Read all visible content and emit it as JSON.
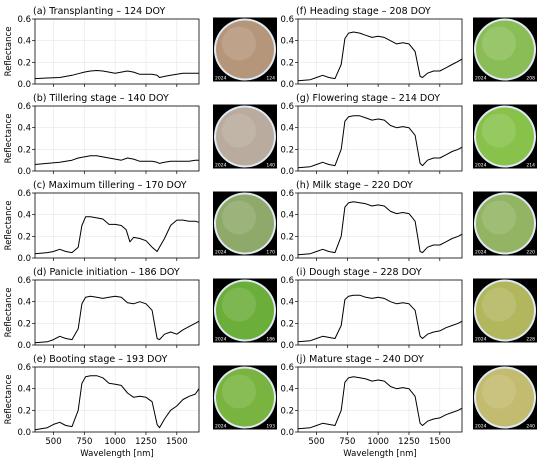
{
  "chart_data": {
    "type": "line",
    "xlabel": "Wavelength [nm]",
    "ylabel": "Reflectance",
    "xlim": [
      350,
      1680
    ],
    "ylim": [
      0,
      0.6
    ],
    "xticks": [
      "500",
      "750",
      "1000",
      "1250",
      "1500"
    ],
    "yticks": [
      "0.0",
      "0.2",
      "0.4",
      "0.6"
    ],
    "grid": true,
    "panels": [
      {
        "title": "(a) Transplanting – 124 DOY",
        "photo": {
          "year": "2024",
          "doy": "124",
          "color": "#b5967a"
        },
        "x": [
          350,
          450,
          550,
          650,
          700,
          750,
          800,
          850,
          900,
          950,
          1000,
          1050,
          1100,
          1150,
          1200,
          1250,
          1300,
          1340,
          1360,
          1400,
          1450,
          1500,
          1550,
          1600,
          1650,
          1680
        ],
        "y": [
          0.05,
          0.055,
          0.06,
          0.08,
          0.095,
          0.11,
          0.12,
          0.125,
          0.12,
          0.11,
          0.1,
          0.11,
          0.12,
          0.11,
          0.09,
          0.09,
          0.09,
          0.08,
          0.06,
          0.07,
          0.08,
          0.09,
          0.1,
          0.1,
          0.1,
          0.1
        ]
      },
      {
        "title": "(b) Tillering stage – 140 DOY",
        "photo": {
          "year": "2024",
          "doy": "140",
          "color": "#b9ab9d"
        },
        "x": [
          350,
          450,
          550,
          650,
          700,
          750,
          800,
          850,
          900,
          950,
          1000,
          1050,
          1100,
          1150,
          1200,
          1250,
          1300,
          1340,
          1360,
          1400,
          1450,
          1500,
          1550,
          1600,
          1650,
          1680
        ],
        "y": [
          0.06,
          0.07,
          0.08,
          0.1,
          0.12,
          0.13,
          0.14,
          0.14,
          0.13,
          0.12,
          0.11,
          0.1,
          0.12,
          0.11,
          0.09,
          0.09,
          0.09,
          0.08,
          0.07,
          0.08,
          0.09,
          0.09,
          0.09,
          0.09,
          0.1,
          0.1
        ]
      },
      {
        "title": "(c) Maximum tillering – 170 DOY",
        "photo": {
          "year": "2024",
          "doy": "170",
          "color": "#8fa96a"
        },
        "x": [
          350,
          450,
          500,
          550,
          600,
          650,
          700,
          730,
          760,
          800,
          850,
          900,
          950,
          1000,
          1050,
          1090,
          1120,
          1150,
          1200,
          1250,
          1300,
          1340,
          1360,
          1400,
          1450,
          1500,
          1550,
          1600,
          1650,
          1680
        ],
        "y": [
          0.04,
          0.05,
          0.06,
          0.08,
          0.06,
          0.05,
          0.1,
          0.3,
          0.38,
          0.38,
          0.37,
          0.36,
          0.31,
          0.31,
          0.3,
          0.26,
          0.15,
          0.19,
          0.18,
          0.16,
          0.1,
          0.06,
          0.1,
          0.18,
          0.3,
          0.35,
          0.35,
          0.34,
          0.34,
          0.33
        ]
      },
      {
        "title": "(d) Panicle initiation – 186 DOY",
        "photo": {
          "year": "2024",
          "doy": "186",
          "color": "#6cae3a"
        },
        "x": [
          350,
          450,
          500,
          550,
          600,
          650,
          700,
          730,
          760,
          800,
          850,
          900,
          950,
          1000,
          1050,
          1100,
          1150,
          1200,
          1250,
          1300,
          1340,
          1360,
          1400,
          1450,
          1500,
          1550,
          1600,
          1650,
          1680
        ],
        "y": [
          0.02,
          0.03,
          0.05,
          0.08,
          0.06,
          0.05,
          0.15,
          0.38,
          0.44,
          0.45,
          0.44,
          0.43,
          0.44,
          0.45,
          0.44,
          0.39,
          0.38,
          0.4,
          0.38,
          0.32,
          0.06,
          0.05,
          0.1,
          0.12,
          0.1,
          0.14,
          0.17,
          0.2,
          0.22
        ]
      },
      {
        "title": "(e) Booting stage – 193 DOY",
        "photo": {
          "year": "2024",
          "doy": "193",
          "color": "#78b43f"
        },
        "x": [
          350,
          450,
          500,
          550,
          600,
          650,
          700,
          730,
          760,
          800,
          850,
          900,
          950,
          1000,
          1050,
          1100,
          1150,
          1200,
          1250,
          1300,
          1340,
          1360,
          1400,
          1450,
          1500,
          1550,
          1600,
          1650,
          1680
        ],
        "y": [
          0.02,
          0.04,
          0.07,
          0.09,
          0.06,
          0.05,
          0.2,
          0.45,
          0.51,
          0.52,
          0.52,
          0.5,
          0.45,
          0.44,
          0.43,
          0.36,
          0.32,
          0.33,
          0.32,
          0.28,
          0.07,
          0.04,
          0.12,
          0.2,
          0.24,
          0.3,
          0.33,
          0.35,
          0.4
        ]
      },
      {
        "title": "(f) Heading stage – 208 DOY",
        "photo": {
          "year": "2024",
          "doy": "208",
          "color": "#8bbd57"
        },
        "x": [
          350,
          450,
          500,
          550,
          600,
          650,
          700,
          730,
          760,
          800,
          850,
          900,
          950,
          1000,
          1050,
          1100,
          1150,
          1200,
          1250,
          1300,
          1340,
          1360,
          1400,
          1450,
          1500,
          1550,
          1600,
          1650,
          1680
        ],
        "y": [
          0.03,
          0.04,
          0.06,
          0.08,
          0.06,
          0.05,
          0.18,
          0.42,
          0.47,
          0.48,
          0.47,
          0.45,
          0.43,
          0.44,
          0.43,
          0.4,
          0.37,
          0.38,
          0.37,
          0.3,
          0.07,
          0.06,
          0.1,
          0.12,
          0.12,
          0.15,
          0.18,
          0.21,
          0.23
        ]
      },
      {
        "title": "(g) Flowering stage – 214 DOY",
        "photo": {
          "year": "2024",
          "doy": "214",
          "color": "#88c24a"
        },
        "x": [
          350,
          450,
          500,
          550,
          600,
          650,
          700,
          730,
          760,
          800,
          850,
          900,
          950,
          1000,
          1050,
          1100,
          1150,
          1200,
          1250,
          1300,
          1340,
          1360,
          1400,
          1450,
          1500,
          1550,
          1600,
          1650,
          1680
        ],
        "y": [
          0.03,
          0.04,
          0.06,
          0.08,
          0.06,
          0.05,
          0.2,
          0.46,
          0.5,
          0.51,
          0.51,
          0.49,
          0.47,
          0.48,
          0.47,
          0.42,
          0.4,
          0.41,
          0.4,
          0.33,
          0.07,
          0.05,
          0.1,
          0.12,
          0.12,
          0.15,
          0.18,
          0.2,
          0.22
        ]
      },
      {
        "title": "(h) Milk stage – 220 DOY",
        "photo": {
          "year": "2024",
          "doy": "220",
          "color": "#93b463"
        },
        "x": [
          350,
          450,
          500,
          550,
          600,
          650,
          700,
          730,
          760,
          800,
          850,
          900,
          950,
          1000,
          1050,
          1100,
          1150,
          1200,
          1250,
          1300,
          1340,
          1360,
          1400,
          1450,
          1500,
          1550,
          1600,
          1650,
          1680
        ],
        "y": [
          0.03,
          0.04,
          0.06,
          0.08,
          0.06,
          0.05,
          0.2,
          0.47,
          0.51,
          0.52,
          0.51,
          0.5,
          0.48,
          0.49,
          0.48,
          0.43,
          0.41,
          0.42,
          0.41,
          0.34,
          0.06,
          0.05,
          0.1,
          0.12,
          0.12,
          0.15,
          0.18,
          0.2,
          0.22
        ]
      },
      {
        "title": "(i) Dough stage – 228 DOY",
        "photo": {
          "year": "2024",
          "doy": "228",
          "color": "#b2b75e"
        },
        "x": [
          350,
          450,
          500,
          550,
          600,
          650,
          700,
          730,
          760,
          800,
          850,
          900,
          950,
          1000,
          1050,
          1100,
          1150,
          1200,
          1250,
          1300,
          1340,
          1360,
          1400,
          1450,
          1500,
          1550,
          1600,
          1650,
          1680
        ],
        "y": [
          0.03,
          0.04,
          0.06,
          0.08,
          0.07,
          0.06,
          0.18,
          0.42,
          0.45,
          0.46,
          0.46,
          0.44,
          0.43,
          0.44,
          0.43,
          0.4,
          0.38,
          0.39,
          0.38,
          0.32,
          0.08,
          0.06,
          0.1,
          0.12,
          0.13,
          0.16,
          0.18,
          0.2,
          0.22
        ]
      },
      {
        "title": "(j) Mature stage – 240 DOY",
        "photo": {
          "year": "2024",
          "doy": "240",
          "color": "#c3bb6f"
        },
        "x": [
          350,
          450,
          500,
          550,
          600,
          650,
          700,
          730,
          760,
          800,
          850,
          900,
          950,
          1000,
          1050,
          1100,
          1150,
          1200,
          1250,
          1300,
          1340,
          1360,
          1400,
          1450,
          1500,
          1550,
          1600,
          1650,
          1680
        ],
        "y": [
          0.03,
          0.04,
          0.06,
          0.08,
          0.07,
          0.06,
          0.2,
          0.46,
          0.5,
          0.51,
          0.5,
          0.49,
          0.47,
          0.48,
          0.47,
          0.42,
          0.4,
          0.41,
          0.4,
          0.33,
          0.08,
          0.06,
          0.1,
          0.12,
          0.13,
          0.16,
          0.18,
          0.2,
          0.22
        ]
      }
    ]
  }
}
